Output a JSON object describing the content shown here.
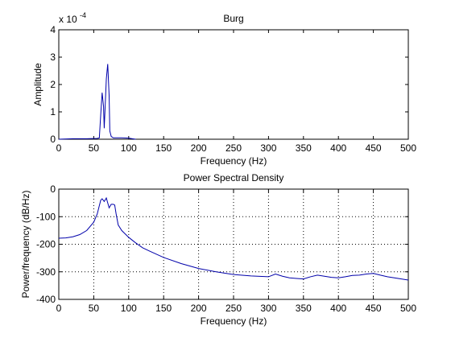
{
  "chart_data": [
    {
      "type": "line",
      "title": "Burg",
      "xlabel": "Frequency (Hz)",
      "ylabel": "Amplitude",
      "exponent_label": "x 10",
      "exponent_power": "-4",
      "xlim": [
        0,
        500
      ],
      "ylim": [
        0,
        4
      ],
      "xticks": [
        0,
        50,
        100,
        150,
        200,
        250,
        300,
        350,
        400,
        450,
        500
      ],
      "yticks": [
        0,
        1,
        2,
        3,
        4
      ],
      "grid": false,
      "line_color": "#0000aa",
      "series": [
        {
          "x": [
            0,
            20,
            40,
            55,
            58,
            60,
            62,
            64,
            65,
            66,
            68,
            70,
            72,
            73,
            75,
            78,
            80,
            90,
            100,
            105,
            110
          ],
          "y": [
            0,
            0.02,
            0.02,
            0.03,
            0.05,
            0.9,
            1.7,
            1.2,
            0.4,
            1.0,
            2.2,
            2.75,
            1.6,
            0.3,
            0.1,
            0.05,
            0.05,
            0.05,
            0.04,
            0.02,
            0
          ]
        }
      ]
    },
    {
      "type": "line",
      "title": "Power Spectral Density",
      "xlabel": "Frequency (Hz)",
      "ylabel": "Power/frequency (dB/Hz)",
      "xlim": [
        0,
        500
      ],
      "ylim": [
        -400,
        0
      ],
      "xticks": [
        0,
        50,
        100,
        150,
        200,
        250,
        300,
        350,
        400,
        450,
        500
      ],
      "yticks": [
        0,
        -100,
        -200,
        -300,
        -400
      ],
      "grid": true,
      "line_color": "#0000aa",
      "series": [
        {
          "x": [
            0,
            10,
            20,
            30,
            40,
            50,
            55,
            58,
            60,
            62,
            65,
            68,
            70,
            72,
            75,
            78,
            80,
            82,
            85,
            90,
            100,
            110,
            120,
            130,
            150,
            175,
            200,
            225,
            250,
            275,
            300,
            310,
            320,
            330,
            340,
            350,
            360,
            370,
            380,
            390,
            400,
            410,
            420,
            430,
            440,
            450,
            460,
            470,
            480,
            490,
            500
          ],
          "y": [
            -178,
            -177,
            -173,
            -165,
            -150,
            -120,
            -90,
            -60,
            -40,
            -35,
            -45,
            -32,
            -50,
            -68,
            -55,
            -55,
            -58,
            -90,
            -130,
            -150,
            -175,
            -195,
            -213,
            -225,
            -248,
            -270,
            -288,
            -300,
            -310,
            -315,
            -318,
            -308,
            -316,
            -322,
            -324,
            -326,
            -318,
            -312,
            -316,
            -320,
            -322,
            -318,
            -313,
            -312,
            -308,
            -306,
            -312,
            -318,
            -322,
            -326,
            -330
          ]
        }
      ]
    }
  ]
}
